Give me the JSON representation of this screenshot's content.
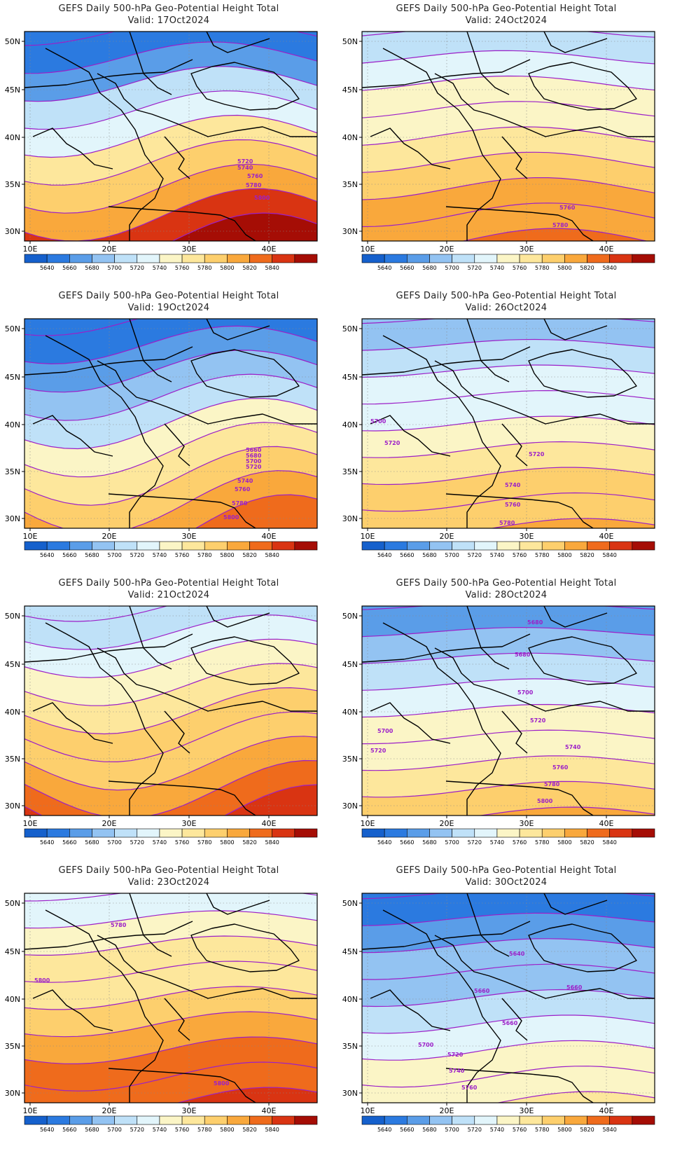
{
  "colors": {
    "bins": [
      "#1560cc",
      "#2b7ae0",
      "#5a9de8",
      "#93c3f2",
      "#bfe1f8",
      "#e2f5fb",
      "#fbf5c6",
      "#fde79c",
      "#fdcf6d",
      "#f9a83c",
      "#ef6b1c",
      "#d93412",
      "#a50d05"
    ],
    "contour": "#9c1fc8",
    "coast": "#000000",
    "label": "#9c1fc8"
  },
  "colorbar": {
    "ticks": [
      "5640",
      "5660",
      "5680",
      "5700",
      "5720",
      "5740",
      "5760",
      "5780",
      "5800",
      "5820",
      "5840"
    ]
  },
  "axes": {
    "lon_labels": [
      "10E",
      "20E",
      "30E",
      "40E"
    ],
    "lat_labels": [
      "50N",
      "45N",
      "40N",
      "35N",
      "30N"
    ]
  },
  "panels": [
    {
      "title": "GEFS Daily 500-hPa Geo-Potential Height Total",
      "date": "Valid: 17Oct2024",
      "center_level": 5570,
      "labels": [
        "5720",
        "5740",
        "5760",
        "5780",
        "5800"
      ]
    },
    {
      "title": "GEFS Daily 500-hPa Geo-Potential Height Total",
      "date": "Valid: 24Oct2024",
      "center_level": 5735,
      "labels": [
        "5760",
        "5780"
      ]
    },
    {
      "title": "GEFS Daily 500-hPa Geo-Potential Height Total",
      "date": "Valid: 19Oct2024",
      "center_level": 5600,
      "labels": [
        "5660",
        "5680",
        "5700",
        "5720",
        "5740",
        "5760",
        "5780",
        "5800"
      ]
    },
    {
      "title": "GEFS Daily 500-hPa Geo-Potential Height Total",
      "date": "Valid: 26Oct2024",
      "center_level": 5690,
      "labels": [
        "5700",
        "5720",
        "5720",
        "5740",
        "5760",
        "5780"
      ]
    },
    {
      "title": "GEFS Daily 500-hPa Geo-Potential Height Total",
      "date": "Valid: 21Oct2024",
      "center_level": 5640,
      "labels": []
    },
    {
      "title": "GEFS Daily 500-hPa Geo-Potential Height Total",
      "date": "Valid: 28Oct2024",
      "center_level": 5660,
      "labels": [
        "5680",
        "5680",
        "5700",
        "5720",
        "5740",
        "5700",
        "5720",
        "5760",
        "5780",
        "5800"
      ]
    },
    {
      "title": "GEFS Daily 500-hPa Geo-Potential Height Total",
      "date": "Valid: 23Oct2024",
      "center_level": 5720,
      "labels": [
        "5780",
        "5800",
        "5800"
      ]
    },
    {
      "title": "GEFS Daily 500-hPa Geo-Potential Height Total",
      "date": "Valid: 30Oct2024",
      "center_level": 5620,
      "labels": [
        "5640",
        "5660",
        "5660",
        "5660",
        "5700",
        "5720",
        "5740",
        "5760"
      ]
    }
  ]
}
